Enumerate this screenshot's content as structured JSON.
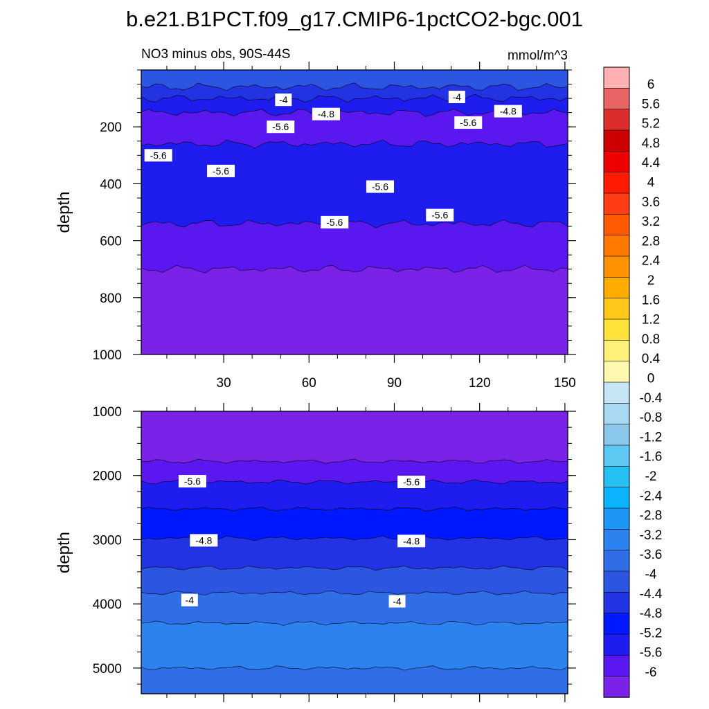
{
  "title": "b.e21.B1PCT.f09_g17.CMIP6-1pctCO2-bgc.001",
  "left_subtitle": "NO3 minus obs, 90S-44S",
  "right_subtitle": "mmol/m^3",
  "colors": {
    "levels": [
      "#7b22e8",
      "#5b17f0",
      "#1f1cf0",
      "#0018ff",
      "#2233e3",
      "#2c55e2",
      "#2f6ee6",
      "#2c82ef",
      "#1e96f5",
      "#0ab3fb",
      "#27c0f3",
      "#5dc8f2",
      "#8cc8ec",
      "#a8d8f2",
      "#c6e6f6",
      "#fff8b0",
      "#fff07a",
      "#ffe23a",
      "#ffc81a",
      "#ffab00",
      "#ff9200",
      "#ff7800",
      "#ff5a00",
      "#ff3c14",
      "#ff1a00",
      "#ee0000",
      "#cc0000",
      "#dd2c2c",
      "#e86464",
      "#ffb0b0"
    ]
  },
  "colorbar": {
    "labels": [
      "6",
      "5.6",
      "5.2",
      "4.8",
      "4.4",
      "4",
      "3.6",
      "3.2",
      "2.8",
      "2.4",
      "2",
      "1.6",
      "1.2",
      "0.8",
      "0.4",
      "0",
      "-0.4",
      "-0.8",
      "-1.2",
      "-1.6",
      "-2",
      "-2.4",
      "-2.8",
      "-3.2",
      "-3.6",
      "-4",
      "-4.4",
      "-4.8",
      "-5.2",
      "-5.6",
      "-6"
    ]
  },
  "chart_data": [
    {
      "type": "heatmap",
      "panel": "upper",
      "x_tick_labels": [
        "30",
        "60",
        "90",
        "120",
        "150"
      ],
      "x_ticks": [
        30,
        60,
        90,
        120,
        150
      ],
      "xlim": [
        1,
        151
      ],
      "ylabel": "depth",
      "y_tick_labels": [
        "200",
        "400",
        "600",
        "800",
        "1000"
      ],
      "y_ticks": [
        200,
        400,
        600,
        800,
        1000
      ],
      "ylim": [
        0,
        1000
      ],
      "bands": [
        {
          "depth_top": 0,
          "depth_bottom": 60,
          "value": -4.2
        },
        {
          "depth_top": 60,
          "depth_bottom": 100,
          "value": -4.6
        },
        {
          "depth_top": 100,
          "depth_bottom": 150,
          "value": -5.4
        },
        {
          "depth_top": 150,
          "depth_bottom": 260,
          "value": -5.8
        },
        {
          "depth_top": 260,
          "depth_bottom": 540,
          "value": -5.4
        },
        {
          "depth_top": 540,
          "depth_bottom": 700,
          "value": -5.8
        },
        {
          "depth_top": 700,
          "depth_bottom": 1000,
          "value": -6.2
        }
      ],
      "contour_labels": [
        {
          "text": "-4",
          "x": 51,
          "depth": 105
        },
        {
          "text": "-4",
          "x": 112,
          "depth": 95
        },
        {
          "text": "-4.8",
          "x": 66,
          "depth": 155
        },
        {
          "text": "-4.8",
          "x": 130,
          "depth": 145
        },
        {
          "text": "-5.6",
          "x": 50,
          "depth": 200
        },
        {
          "text": "-5.6",
          "x": 116,
          "depth": 185
        },
        {
          "text": "-5.6",
          "x": 7,
          "depth": 300
        },
        {
          "text": "-5.6",
          "x": 29,
          "depth": 355
        },
        {
          "text": "-5.6",
          "x": 85,
          "depth": 410
        },
        {
          "text": "-5.6",
          "x": 69,
          "depth": 535
        },
        {
          "text": "-5.6",
          "x": 106,
          "depth": 510
        }
      ]
    },
    {
      "type": "heatmap",
      "panel": "lower",
      "x_ticks": [
        30,
        60,
        90,
        120,
        150
      ],
      "xlim": [
        1,
        151
      ],
      "ylabel": "depth",
      "y_tick_labels": [
        "1000",
        "2000",
        "3000",
        "4000",
        "5000"
      ],
      "y_ticks": [
        1000,
        2000,
        3000,
        4000,
        5000
      ],
      "ylim": [
        1000,
        5400
      ],
      "bands": [
        {
          "depth_top": 1000,
          "depth_bottom": 1780,
          "value": -6.2
        },
        {
          "depth_top": 1780,
          "depth_bottom": 2100,
          "value": -5.8
        },
        {
          "depth_top": 2100,
          "depth_bottom": 2520,
          "value": -5.4
        },
        {
          "depth_top": 2520,
          "depth_bottom": 2980,
          "value": -5.0
        },
        {
          "depth_top": 2980,
          "depth_bottom": 3440,
          "value": -4.6
        },
        {
          "depth_top": 3440,
          "depth_bottom": 3830,
          "value": -4.2
        },
        {
          "depth_top": 3830,
          "depth_bottom": 4300,
          "value": -3.8
        },
        {
          "depth_top": 4300,
          "depth_bottom": 5000,
          "value": -3.4
        },
        {
          "depth_top": 5000,
          "depth_bottom": 5400,
          "value": -3.8
        }
      ],
      "contour_labels": [
        {
          "text": "-5.6",
          "x": 19,
          "depth": 2090
        },
        {
          "text": "-5.6",
          "x": 96,
          "depth": 2100
        },
        {
          "text": "-4.8",
          "x": 23,
          "depth": 3010
        },
        {
          "text": "-4.8",
          "x": 96,
          "depth": 3020
        },
        {
          "text": "-4",
          "x": 18,
          "depth": 3940
        },
        {
          "text": "-4",
          "x": 91,
          "depth": 3960
        }
      ]
    }
  ]
}
